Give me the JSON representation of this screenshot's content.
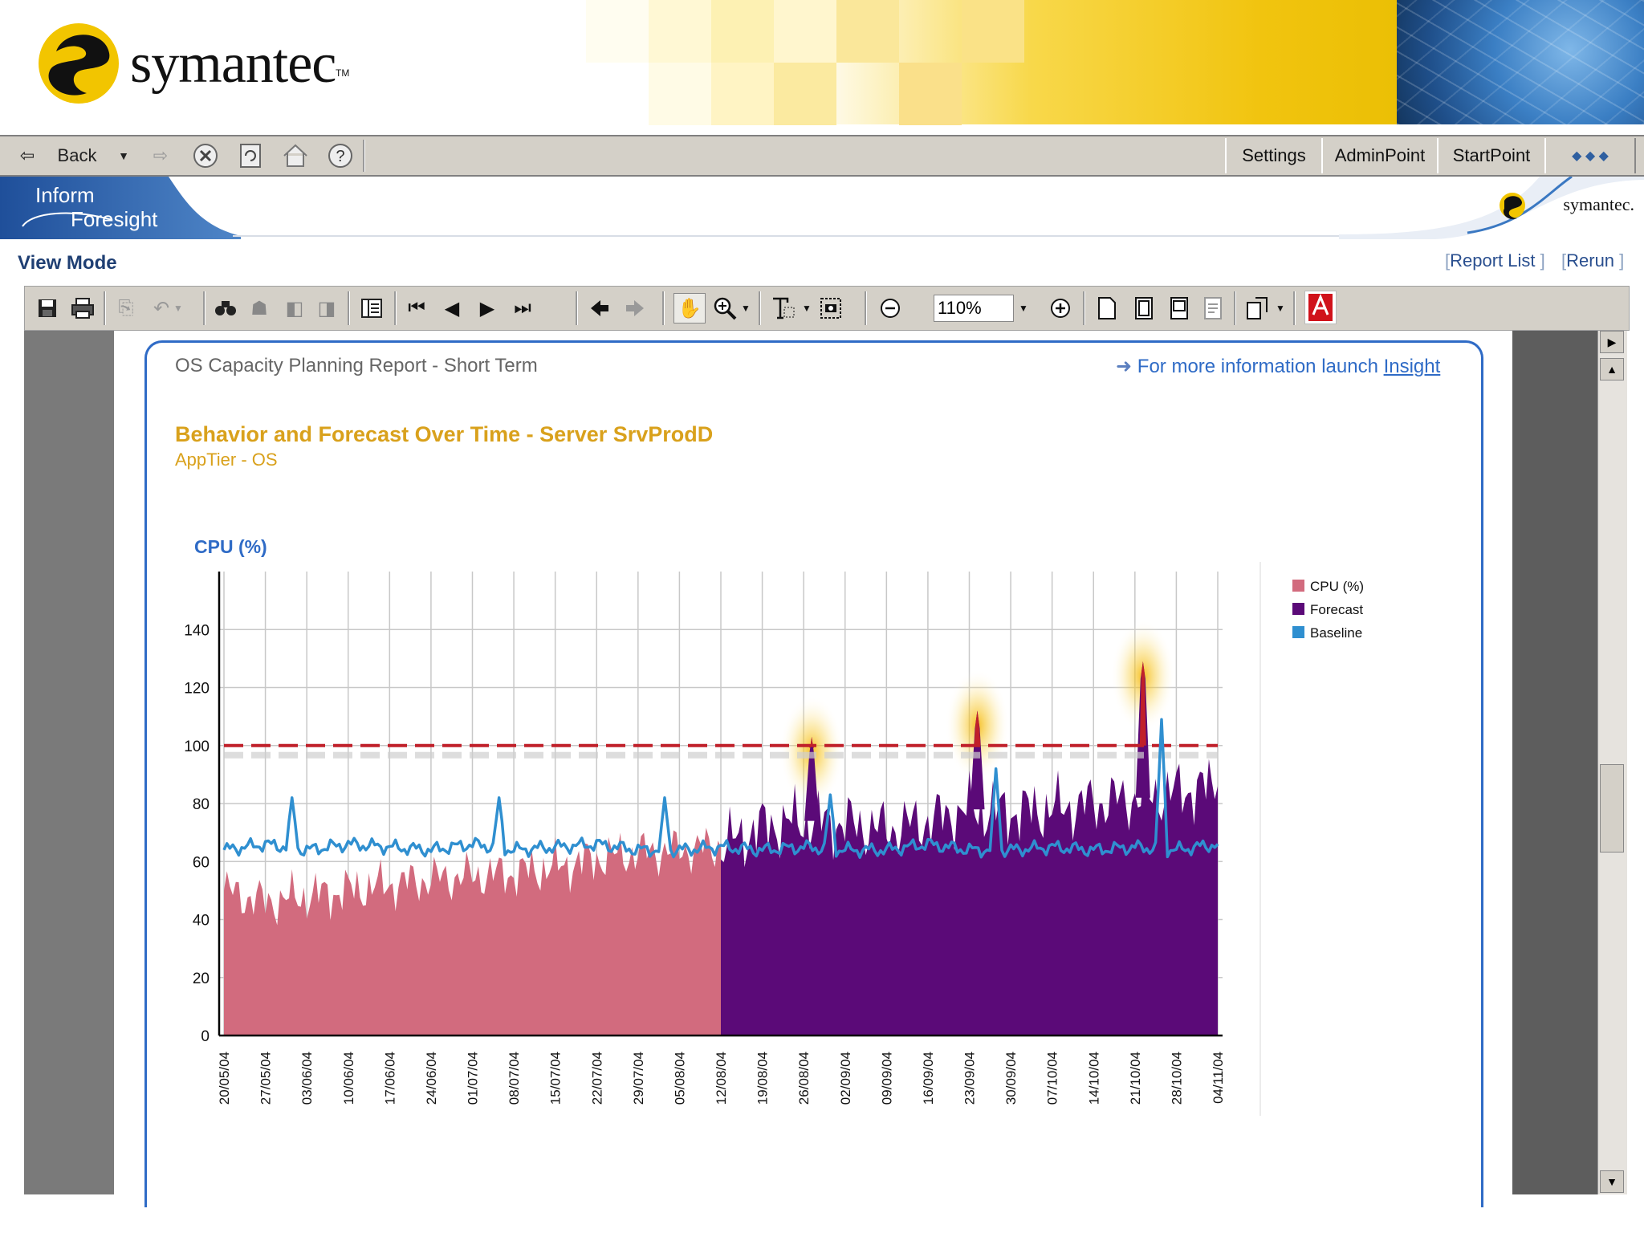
{
  "banner": {
    "brand": "symantec",
    "trademark": "TM"
  },
  "browser_toolbar": {
    "back_label": "Back",
    "links": [
      "Settings",
      "AdminPoint",
      "StartPoint"
    ]
  },
  "app_header": {
    "product_line1": "Inform",
    "product_line2": "Foresight",
    "brand_small": "symantec."
  },
  "view_mode": "View Mode",
  "nav_links": {
    "report_list": "Report List",
    "rerun": "Rerun"
  },
  "viewer_toolbar": {
    "zoom_value": "110%"
  },
  "report": {
    "title": "OS Capacity Planning Report - Short Term",
    "insight_prefix": "For more information launch ",
    "insight_link": "Insight"
  },
  "chart_data": {
    "type": "area",
    "title": "Behavior and Forecast Over Time - Server SrvProdD",
    "subtitle": "AppTier - OS",
    "ylabel": "CPU (%)",
    "ylim": [
      0,
      160
    ],
    "yticks": [
      0,
      20,
      40,
      60,
      80,
      100,
      120,
      140
    ],
    "threshold": 100,
    "x": [
      "20/05/04",
      "27/05/04",
      "03/06/04",
      "10/06/04",
      "17/06/04",
      "24/06/04",
      "01/07/04",
      "08/07/04",
      "15/07/04",
      "22/07/04",
      "29/07/04",
      "05/08/04",
      "12/08/04",
      "19/08/04",
      "26/08/04",
      "02/09/04",
      "09/09/04",
      "16/09/04",
      "23/09/04",
      "30/09/04",
      "07/10/04",
      "14/10/04",
      "21/10/04",
      "28/10/04",
      "04/11/04"
    ],
    "series": [
      {
        "name": "CPU (%)",
        "color": "#d26b7e",
        "values": [
          50,
          46,
          48,
          50,
          52,
          54,
          55,
          56,
          58,
          61,
          63,
          64,
          65,
          null,
          null,
          null,
          null,
          null,
          null,
          null,
          null,
          null,
          null,
          null,
          null
        ]
      },
      {
        "name": "Forecast",
        "color": "#5b0a78",
        "values": [
          null,
          null,
          null,
          null,
          null,
          null,
          null,
          null,
          null,
          null,
          null,
          null,
          65,
          72,
          74,
          73,
          71,
          74,
          78,
          77,
          78,
          80,
          82,
          84,
          86
        ]
      },
      {
        "name": "Baseline",
        "color": "#2f8fd0",
        "values": [
          64,
          66,
          64,
          66,
          65,
          64,
          66,
          64,
          65,
          66,
          64,
          64,
          65,
          64,
          65,
          64,
          64,
          66,
          64,
          64,
          65,
          64,
          65,
          64,
          66
        ]
      }
    ],
    "spikes": [
      {
        "x": "27/05/04",
        "series": "Baseline",
        "value": 82
      },
      {
        "x": "01/07/04",
        "series": "Baseline",
        "value": 82
      },
      {
        "x": "29/07/04",
        "series": "Baseline",
        "value": 82
      },
      {
        "x": "26/08/04",
        "series": "Forecast",
        "value": 103
      },
      {
        "x": "23/09/04",
        "series": "Forecast",
        "value": 112
      },
      {
        "x": "21/10/04",
        "series": "Forecast",
        "value": 129
      }
    ],
    "legend_position": "right",
    "grid": true,
    "colors": {
      "threshold": "#c0202a",
      "axis_title": "#2f6bc6",
      "title": "#d9a11c"
    }
  }
}
